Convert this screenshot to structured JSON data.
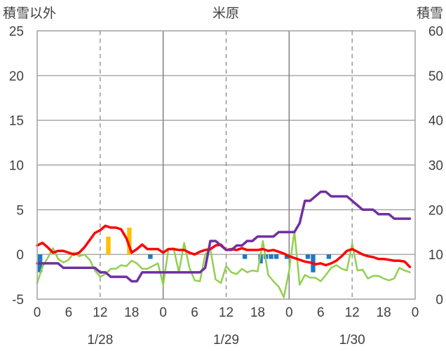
{
  "chart_data": {
    "type": "line",
    "title": "米原",
    "left_axis_label": "積雪以外",
    "right_axis_label": "積雪",
    "left_ylim": [
      -5,
      25
    ],
    "right_ylim": [
      0,
      60
    ],
    "left_ticks": [
      "25",
      "20",
      "15",
      "10",
      "5",
      "0",
      "-5"
    ],
    "right_ticks": [
      "60",
      "50",
      "40",
      "30",
      "20",
      "10",
      "0"
    ],
    "x_range_hours": [
      0,
      72
    ],
    "x_tick_hours": [
      0,
      6,
      12,
      18,
      24,
      30,
      36,
      42,
      48,
      54,
      60,
      66,
      72
    ],
    "x_tick_labels": [
      "0",
      "6",
      "12",
      "18",
      "0",
      "6",
      "12",
      "18",
      "0",
      "6",
      "12",
      "18",
      "0"
    ],
    "date_labels": [
      {
        "hour": 12,
        "label": "1/28"
      },
      {
        "hour": 36,
        "label": "1/29"
      },
      {
        "hour": 60,
        "label": "1/30"
      }
    ],
    "grid": "vertical dashed at 12h, solid day separators at 24h and 48h",
    "colors": {
      "temperature": "#ff0000",
      "snow_depth": "#7030a0",
      "snowfall_bar": "#ffc000",
      "precip_bar": "#1f77c4",
      "green_line": "#92d050",
      "gridline": "#808080"
    },
    "series": [
      {
        "key": "temperature",
        "axis": "left",
        "x": [
          0,
          1,
          2,
          3,
          4,
          5,
          6,
          7,
          8,
          9,
          10,
          11,
          12,
          13,
          14,
          15,
          16,
          17,
          18,
          19,
          20,
          21,
          22,
          23,
          24,
          25,
          26,
          27,
          28,
          29,
          30,
          31,
          32,
          33,
          34,
          35,
          36,
          37,
          38,
          39,
          40,
          41,
          42,
          43,
          44,
          45,
          46,
          47,
          48,
          49,
          50,
          51,
          52,
          53,
          54,
          55,
          56,
          57,
          58,
          59,
          60,
          61,
          62,
          63,
          64,
          65,
          66,
          67,
          68,
          69,
          70,
          71
        ],
        "values": [
          1.0,
          1.3,
          0.8,
          0.2,
          0.4,
          0.4,
          0.2,
          0.0,
          0.2,
          0.8,
          1.6,
          2.4,
          2.7,
          3.2,
          3.0,
          3.0,
          2.8,
          1.8,
          0.2,
          0.6,
          1.1,
          0.6,
          0.6,
          0.6,
          0.2,
          0.6,
          0.6,
          0.5,
          0.5,
          0.2,
          0.0,
          0.3,
          0.5,
          0.6,
          1.0,
          1.1,
          0.5,
          0.6,
          0.5,
          0.7,
          0.5,
          0.5,
          0.5,
          0.6,
          0.4,
          0.5,
          0.3,
          0.1,
          -0.2,
          -0.4,
          -0.6,
          -0.8,
          -0.9,
          -1.1,
          -1.0,
          -1.2,
          -1.0,
          -0.7,
          -0.2,
          0.4,
          0.6,
          0.3,
          0.0,
          -0.2,
          -0.3,
          -0.5,
          -0.5,
          -0.6,
          -0.7,
          -0.7,
          -0.8,
          -1.4
        ]
      },
      {
        "key": "snow_depth",
        "axis": "right",
        "x": [
          0,
          4,
          5,
          11,
          12,
          13,
          14,
          15,
          16,
          17,
          18,
          19,
          20,
          21,
          22,
          23,
          24,
          25,
          26,
          27,
          28,
          29,
          30,
          31,
          32,
          33,
          34,
          35,
          36,
          37,
          38,
          39,
          40,
          41,
          42,
          43,
          44,
          45,
          46,
          47,
          48,
          49,
          50,
          51,
          52,
          53,
          54,
          55,
          56,
          57,
          58,
          59,
          60,
          61,
          62,
          63,
          64,
          65,
          66,
          67,
          68,
          69,
          70,
          71
        ],
        "values": [
          8,
          8,
          7,
          7,
          6,
          6,
          5,
          5,
          5,
          5,
          4,
          4,
          6,
          6,
          6,
          6,
          6,
          6,
          6,
          6,
          6,
          6,
          6,
          6,
          7,
          13,
          13,
          12,
          11,
          11,
          12,
          12,
          13,
          13,
          14,
          14,
          14,
          14,
          15,
          15,
          15,
          15,
          17,
          22,
          22,
          23,
          24,
          24,
          23,
          23,
          23,
          23,
          22,
          21,
          20,
          20,
          20,
          19,
          19,
          19,
          18,
          18,
          18,
          18
        ]
      },
      {
        "key": "green_line",
        "axis": "left",
        "x": [
          0,
          1,
          2,
          3,
          4,
          5,
          6,
          7,
          8,
          9,
          10,
          11,
          12,
          13,
          14,
          15,
          16,
          17,
          18,
          19,
          20,
          21,
          22,
          23,
          24,
          25,
          26,
          27,
          28,
          29,
          30,
          31,
          32,
          33,
          34,
          35,
          36,
          37,
          38,
          39,
          40,
          41,
          42,
          43,
          44,
          45,
          46,
          47,
          48,
          49,
          50,
          51,
          52,
          53,
          54,
          55,
          56,
          57,
          58,
          59,
          60,
          61,
          62,
          63,
          64,
          65,
          66,
          67,
          68,
          69,
          70,
          71
        ],
        "values": [
          -3.2,
          -1.4,
          -0.4,
          0.7,
          -0.5,
          -0.9,
          -0.6,
          0.2,
          -0.2,
          0.0,
          -0.6,
          -1.8,
          -2.5,
          -2.2,
          -1.6,
          -1.6,
          -1.2,
          -1.3,
          -0.7,
          -1.0,
          -1.6,
          -1.6,
          -1.3,
          -1.0,
          -3.4,
          0.6,
          0.7,
          -2.0,
          1.3,
          -1.5,
          -2.9,
          -3.0,
          0.0,
          0.6,
          -2.8,
          -3.2,
          -1.3,
          -2.0,
          -2.2,
          -1.6,
          -2.0,
          -1.8,
          -1.9,
          1.5,
          -2.3,
          -3.0,
          -3.6,
          -4.8,
          -1.8,
          2.6,
          -3.4,
          -2.3,
          -2.6,
          -2.6,
          -3.0,
          -2.3,
          -1.5,
          -1.2,
          -1.6,
          -1.8,
          1.2,
          -1.8,
          -1.7,
          -2.7,
          -2.4,
          -2.4,
          -2.7,
          -2.9,
          -2.7,
          -1.5,
          -1.8,
          -2.0
        ]
      }
    ],
    "bars": [
      {
        "key": "snowfall_bar",
        "axis": "left",
        "x": [
          13,
          17
        ],
        "values": [
          2.0,
          3.0
        ]
      },
      {
        "key": "precip_bar",
        "axis": "left",
        "x": [
          0,
          21,
          39,
          42,
          43,
          44,
          45,
          47,
          51,
          52,
          55
        ],
        "values": [
          -2.0,
          -0.5,
          -0.5,
          -1.0,
          -0.5,
          -0.5,
          -0.5,
          -0.5,
          -0.5,
          -2.0,
          -0.5
        ]
      }
    ]
  }
}
